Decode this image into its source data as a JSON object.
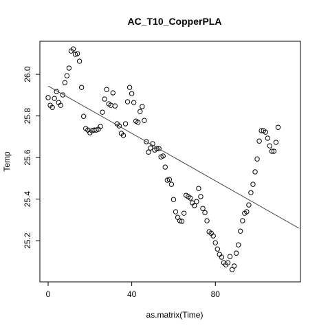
{
  "chart_data": {
    "type": "scatter",
    "title": "AC_T10_CopperPLA",
    "x_label": "as.matrix(Time)",
    "y_label": "Temp",
    "x": [
      0,
      1,
      2,
      3,
      4,
      5,
      6,
      7,
      8,
      9,
      10,
      11,
      12,
      13,
      14,
      15,
      16,
      17,
      18,
      19,
      20,
      21,
      22,
      23,
      24,
      25,
      26,
      27,
      28,
      29,
      30,
      31,
      32,
      33,
      34,
      35,
      36,
      37,
      38,
      39,
      40,
      41,
      42,
      43,
      44,
      45,
      46,
      47,
      48,
      49,
      50,
      51,
      52,
      53,
      54,
      55,
      56,
      57,
      58,
      59,
      60,
      61,
      62,
      63,
      64,
      65,
      66,
      67,
      68,
      69,
      70,
      71,
      72,
      73,
      74,
      75,
      76,
      77,
      78,
      79,
      80,
      81,
      82,
      83,
      84,
      85,
      86,
      87,
      88,
      89,
      90,
      91,
      92,
      93,
      94,
      95,
      96,
      97,
      98,
      99,
      100,
      101,
      102,
      103,
      104,
      105,
      106,
      107,
      108,
      109,
      110
    ],
    "values": [
      25.888,
      25.851,
      25.841,
      25.884,
      25.917,
      25.864,
      25.851,
      25.901,
      25.96,
      25.993,
      26.03,
      26.112,
      26.122,
      26.096,
      26.099,
      26.063,
      25.937,
      25.798,
      25.739,
      25.732,
      25.719,
      25.729,
      25.732,
      25.732,
      25.736,
      25.749,
      25.818,
      25.881,
      25.927,
      25.858,
      25.851,
      25.911,
      25.848,
      25.762,
      25.752,
      25.716,
      25.706,
      25.762,
      25.868,
      25.937,
      25.907,
      25.864,
      25.775,
      25.769,
      25.821,
      25.845,
      25.778,
      25.676,
      25.626,
      25.646,
      25.666,
      25.636,
      25.643,
      25.643,
      25.603,
      25.607,
      25.554,
      25.491,
      25.494,
      25.471,
      25.398,
      25.339,
      25.312,
      25.296,
      25.293,
      25.332,
      25.418,
      25.412,
      25.405,
      25.382,
      25.369,
      25.388,
      25.451,
      25.412,
      25.355,
      25.335,
      25.296,
      25.243,
      25.236,
      25.223,
      25.19,
      25.16,
      25.134,
      25.121,
      25.094,
      25.084,
      25.094,
      25.124,
      25.061,
      25.078,
      25.14,
      25.18,
      25.246,
      25.296,
      25.332,
      25.339,
      25.372,
      25.431,
      25.471,
      25.531,
      25.593,
      25.679,
      25.729,
      25.729,
      25.722,
      25.693,
      25.656,
      25.63,
      25.63,
      25.673,
      25.745
    ],
    "color": "#000000",
    "trend_line": {
      "x": [
        0,
        120
      ],
      "y": [
        25.944,
        25.26
      ],
      "color": "#444444"
    },
    "xlim": [
      -3.95,
      120.7
    ],
    "xticks": [
      0,
      40,
      80
    ],
    "ylim": [
      25.002,
      26.159
    ],
    "yticks": [
      25.2,
      25.4,
      25.6,
      25.8,
      {
        "value": 26,
        "label": "26.0"
      }
    ]
  }
}
